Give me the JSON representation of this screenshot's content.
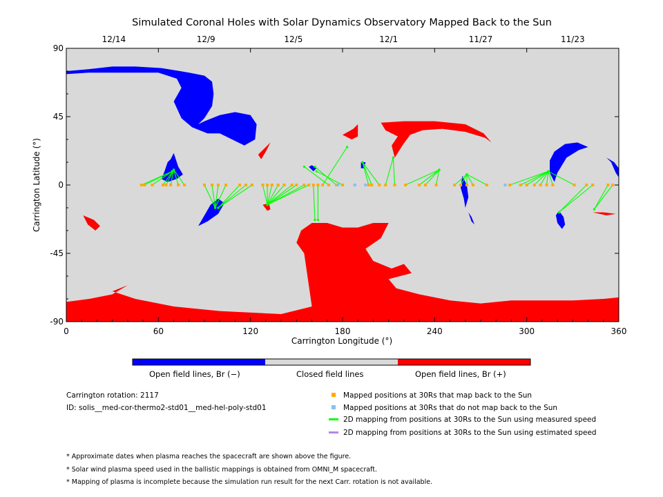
{
  "chart_data": {
    "type": "scatter",
    "title": "Simulated Coronal Holes with Solar Dynamics Observatory Mapped Back to the Sun",
    "xlabel": "Carrington Longitude (°)",
    "ylabel": "Carrington Latitude (°)",
    "xlim": [
      0,
      360
    ],
    "ylim": [
      -90,
      90
    ],
    "xticks": [
      0,
      60,
      120,
      180,
      240,
      300,
      360
    ],
    "yticks": [
      -90,
      -45,
      0,
      45,
      90
    ],
    "top_axis": {
      "labels": [
        "12/14",
        "12/9",
        "12/5",
        "12/1",
        "11/27",
        "11/23"
      ],
      "positions": [
        31,
        91,
        148,
        210,
        270,
        330
      ]
    },
    "colors": {
      "closed": "#d9d9d9",
      "open_negative": "#0000ff",
      "open_positive": "#ff0000",
      "mapped_point": "#ffaa00",
      "unmapped_point": "#87bff0",
      "measured_line": "#00ff00",
      "estimated_line": "#b388e6"
    },
    "mapping": [
      {
        "x": 49,
        "y": 0,
        "fx": 69,
        "fy": 9
      },
      {
        "x": 51,
        "y": 0,
        "fx": 69,
        "fy": 9
      },
      {
        "x": 56,
        "y": 0,
        "fx": 69,
        "fy": 9
      },
      {
        "x": 63,
        "y": 0,
        "fx": 70,
        "fy": 10
      },
      {
        "x": 65,
        "y": 0,
        "fx": 70,
        "fy": 10
      },
      {
        "x": 68,
        "y": 0,
        "fx": 70,
        "fy": 10
      },
      {
        "x": 73,
        "y": 0,
        "fx": 70,
        "fy": 10
      },
      {
        "x": 77,
        "y": 0,
        "fx": 70,
        "fy": 10
      },
      {
        "x": 90,
        "y": 0,
        "fx": 97,
        "fy": -15
      },
      {
        "x": 95,
        "y": 0,
        "fx": 97,
        "fy": -15
      },
      {
        "x": 99,
        "y": 0,
        "fx": 97,
        "fy": -15
      },
      {
        "x": 104,
        "y": 0,
        "fx": 97,
        "fy": -15
      },
      {
        "x": 113,
        "y": 0,
        "fx": 99,
        "fy": -15
      },
      {
        "x": 117,
        "y": 0,
        "fx": 99,
        "fy": -15
      },
      {
        "x": 121,
        "y": 0,
        "fx": 99,
        "fy": -15
      },
      {
        "x": 128,
        "y": 0,
        "fx": 131,
        "fy": -13
      },
      {
        "x": 131,
        "y": 0,
        "fx": 131,
        "fy": -13
      },
      {
        "x": 134,
        "y": 0,
        "fx": 131,
        "fy": -13
      },
      {
        "x": 138,
        "y": 0,
        "fx": 131,
        "fy": -13
      },
      {
        "x": 142,
        "y": 0,
        "fx": 131,
        "fy": -13
      },
      {
        "x": 147,
        "y": 0,
        "fx": 131,
        "fy": -13
      },
      {
        "x": 150,
        "y": 0,
        "fx": 131,
        "fy": -13
      },
      {
        "x": 155,
        "y": 0,
        "fx": 131,
        "fy": -13
      },
      {
        "x": 158,
        "y": 0,
        "fx": 131,
        "fy": -13
      },
      {
        "x": 161,
        "y": 0,
        "fx": 162,
        "fy": -23
      },
      {
        "x": 164,
        "y": 0,
        "fx": 164,
        "fy": -23
      },
      {
        "x": 167,
        "y": 0,
        "fx": 183,
        "fy": 25
      },
      {
        "x": 171,
        "y": 0,
        "fx": 155,
        "fy": 12
      },
      {
        "x": 176,
        "y": 0,
        "fx": 162,
        "fy": 12
      },
      {
        "x": 180,
        "y": 0,
        "fx": 163,
        "fy": 9
      },
      {
        "x": 197,
        "y": 0,
        "fx": 193,
        "fy": 15
      },
      {
        "x": 199,
        "y": 0,
        "fx": 193,
        "fy": 15
      },
      {
        "x": 204,
        "y": 0,
        "fx": 193,
        "fy": 15
      },
      {
        "x": 208,
        "y": 0,
        "fx": 213,
        "fy": 18
      },
      {
        "x": 214,
        "y": 0,
        "fx": 213,
        "fy": 18
      },
      {
        "x": 221,
        "y": 0,
        "fx": 243,
        "fy": 10
      },
      {
        "x": 230,
        "y": 0,
        "fx": 243,
        "fy": 10
      },
      {
        "x": 234,
        "y": 0,
        "fx": 243,
        "fy": 10
      },
      {
        "x": 241,
        "y": 0,
        "fx": 243,
        "fy": 10
      },
      {
        "x": 253,
        "y": 0,
        "fx": 261,
        "fy": 7
      },
      {
        "x": 257,
        "y": 0,
        "fx": 261,
        "fy": 7
      },
      {
        "x": 261,
        "y": 0,
        "fx": 261,
        "fy": 7
      },
      {
        "x": 265,
        "y": 0,
        "fx": 261,
        "fy": 7
      },
      {
        "x": 274,
        "y": 0,
        "fx": 261,
        "fy": 7
      },
      {
        "x": 289,
        "y": 0,
        "fx": 314,
        "fy": 9
      },
      {
        "x": 296,
        "y": 0,
        "fx": 314,
        "fy": 9
      },
      {
        "x": 300,
        "y": 0,
        "fx": 314,
        "fy": 9
      },
      {
        "x": 305,
        "y": 0,
        "fx": 314,
        "fy": 9
      },
      {
        "x": 309,
        "y": 0,
        "fx": 314,
        "fy": 9
      },
      {
        "x": 313,
        "y": 0,
        "fx": 314,
        "fy": 9
      },
      {
        "x": 317,
        "y": 0,
        "fx": 314,
        "fy": 9
      },
      {
        "x": 331,
        "y": 0,
        "fx": 314,
        "fy": 9
      },
      {
        "x": 339,
        "y": 0,
        "fx": 321,
        "fy": -18
      },
      {
        "x": 343,
        "y": 0,
        "fx": 321,
        "fy": -18
      },
      {
        "x": 353,
        "y": 0,
        "fx": 344,
        "fy": -16
      },
      {
        "x": 356,
        "y": 0,
        "fx": 344,
        "fy": -16
      }
    ],
    "unmapped_points": [
      {
        "x": 177,
        "y": 0
      },
      {
        "x": 188,
        "y": 0
      },
      {
        "x": 195,
        "y": 0
      },
      {
        "x": 286,
        "y": 0
      }
    ],
    "coronal_holes": {
      "negative": [
        [
          [
            0,
            75
          ],
          [
            12,
            76
          ],
          [
            30,
            78
          ],
          [
            45,
            78
          ],
          [
            62,
            77
          ],
          [
            80,
            74
          ],
          [
            90,
            72
          ],
          [
            95,
            68
          ],
          [
            96,
            60
          ],
          [
            95,
            52
          ],
          [
            90,
            44
          ],
          [
            86,
            40
          ],
          [
            90,
            42
          ],
          [
            100,
            46
          ],
          [
            110,
            48
          ],
          [
            120,
            46
          ],
          [
            124,
            40
          ],
          [
            123,
            30
          ],
          [
            116,
            26
          ],
          [
            108,
            30
          ],
          [
            100,
            34
          ],
          [
            92,
            34
          ],
          [
            82,
            38
          ],
          [
            75,
            44
          ],
          [
            70,
            55
          ],
          [
            75,
            64
          ],
          [
            72,
            70
          ],
          [
            60,
            74
          ],
          [
            45,
            74
          ],
          [
            30,
            74
          ],
          [
            15,
            74
          ],
          [
            0,
            73
          ]
        ],
        [
          [
            66,
            15
          ],
          [
            64,
            9
          ],
          [
            62,
            4
          ],
          [
            66,
            2
          ],
          [
            72,
            4
          ],
          [
            76,
            7
          ],
          [
            73,
            12
          ],
          [
            70,
            21
          ],
          [
            68,
            17
          ]
        ],
        [
          [
            86,
            -27
          ],
          [
            92,
            -24
          ],
          [
            99,
            -19
          ],
          [
            103,
            -12
          ],
          [
            99,
            -9
          ],
          [
            94,
            -13
          ],
          [
            90,
            -20
          ]
        ],
        [
          [
            315,
            16
          ],
          [
            318,
            22
          ],
          [
            325,
            27
          ],
          [
            333,
            28
          ],
          [
            340,
            25
          ],
          [
            334,
            23
          ],
          [
            326,
            18
          ],
          [
            320,
            8
          ],
          [
            318,
            2
          ],
          [
            315,
            8
          ]
        ],
        [
          [
            321,
            -17
          ],
          [
            324,
            -21
          ],
          [
            325,
            -26
          ],
          [
            323,
            -29
          ],
          [
            320,
            -25
          ],
          [
            319,
            -20
          ]
        ],
        [
          [
            352,
            18
          ],
          [
            355,
            15
          ],
          [
            358,
            8
          ],
          [
            360,
            5
          ],
          [
            360,
            11
          ],
          [
            357,
            15
          ]
        ],
        [
          [
            258,
            6
          ],
          [
            261,
            0
          ],
          [
            262,
            -8
          ],
          [
            260,
            -15
          ],
          [
            259,
            -9
          ],
          [
            257,
            -2
          ]
        ],
        [
          [
            262,
            -18
          ],
          [
            264,
            -24
          ],
          [
            266,
            -26
          ],
          [
            264,
            -21
          ]
        ],
        [
          [
            158,
            12
          ],
          [
            161,
            9
          ],
          [
            163,
            11
          ],
          [
            160,
            13
          ]
        ],
        [
          [
            192,
            15
          ],
          [
            195,
            15
          ],
          [
            194,
            11
          ],
          [
            192,
            11
          ]
        ]
      ],
      "positive": [
        [
          [
            0,
            -77
          ],
          [
            15,
            -75
          ],
          [
            30,
            -72
          ],
          [
            40,
            -66
          ],
          [
            30,
            -70
          ],
          [
            45,
            -75
          ],
          [
            70,
            -80
          ],
          [
            100,
            -83
          ],
          [
            140,
            -85
          ],
          [
            160,
            -80
          ],
          [
            155,
            -45
          ],
          [
            150,
            -38
          ],
          [
            153,
            -30
          ],
          [
            160,
            -25
          ],
          [
            170,
            -25
          ],
          [
            180,
            -28
          ],
          [
            190,
            -28
          ],
          [
            200,
            -25
          ],
          [
            210,
            -25
          ],
          [
            205,
            -35
          ],
          [
            195,
            -42
          ],
          [
            200,
            -50
          ],
          [
            212,
            -55
          ],
          [
            220,
            -52
          ],
          [
            225,
            -58
          ],
          [
            210,
            -62
          ],
          [
            215,
            -68
          ],
          [
            230,
            -72
          ],
          [
            250,
            -76
          ],
          [
            270,
            -78
          ],
          [
            290,
            -76
          ],
          [
            310,
            -76
          ],
          [
            330,
            -76
          ],
          [
            350,
            -75
          ],
          [
            360,
            -74
          ],
          [
            360,
            -90
          ],
          [
            0,
            -90
          ]
        ],
        [
          [
            205,
            41
          ],
          [
            220,
            42
          ],
          [
            240,
            42
          ],
          [
            260,
            40
          ],
          [
            272,
            34
          ],
          [
            277,
            28
          ],
          [
            273,
            31
          ],
          [
            260,
            35
          ],
          [
            245,
            37
          ],
          [
            232,
            36
          ],
          [
            224,
            33
          ],
          [
            219,
            26
          ],
          [
            214,
            18
          ],
          [
            212,
            26
          ],
          [
            216,
            32
          ],
          [
            208,
            36
          ]
        ],
        [
          [
            180,
            33
          ],
          [
            187,
            37
          ],
          [
            190,
            40
          ],
          [
            190,
            32
          ],
          [
            186,
            30
          ]
        ],
        [
          [
            125,
            20
          ],
          [
            130,
            25
          ],
          [
            133,
            28
          ],
          [
            130,
            22
          ],
          [
            127,
            17
          ]
        ],
        [
          [
            11,
            -20
          ],
          [
            18,
            -23
          ],
          [
            22,
            -27
          ],
          [
            19,
            -30
          ],
          [
            14,
            -26
          ]
        ],
        [
          [
            128,
            -13
          ],
          [
            131,
            -17
          ],
          [
            133,
            -16
          ],
          [
            132,
            -12
          ]
        ],
        [
          [
            343,
            -18
          ],
          [
            350,
            -18
          ],
          [
            358,
            -19
          ],
          [
            352,
            -20
          ]
        ]
      ]
    }
  },
  "colorbar": {
    "labels": [
      "Open field lines, Br (−)",
      "Closed field lines",
      "Open field lines, Br (+)"
    ]
  },
  "info": {
    "rotation": "Carrington rotation: 2117",
    "id": "ID: solis__med-cor-thermo2-std01__med-hel-poly-std01"
  },
  "legend": [
    {
      "label": "Mapped positions at 30Rs that map back to the Sun",
      "icon": "square",
      "color": "#ffaa00"
    },
    {
      "label": "Mapped positions at 30Rs that do not map back to the Sun",
      "icon": "square",
      "color": "#87bff0"
    },
    {
      "label": "2D mapping from positions at 30Rs to the Sun using measured speed",
      "icon": "line",
      "color": "#00ff00"
    },
    {
      "label": "2D mapping from positions at 30Rs to the Sun using estimated speed",
      "icon": "line",
      "color": "#b388e6"
    }
  ],
  "notes": [
    "* Approximate dates when plasma reaches the spacecraft are shown above the figure.",
    "* Solar wind plasma speed used in the ballistic mappings is obtained from OMNI_M spacecraft.",
    "* Mapping of plasma is incomplete because the simulation run result for the next Carr. rotation is not available."
  ]
}
